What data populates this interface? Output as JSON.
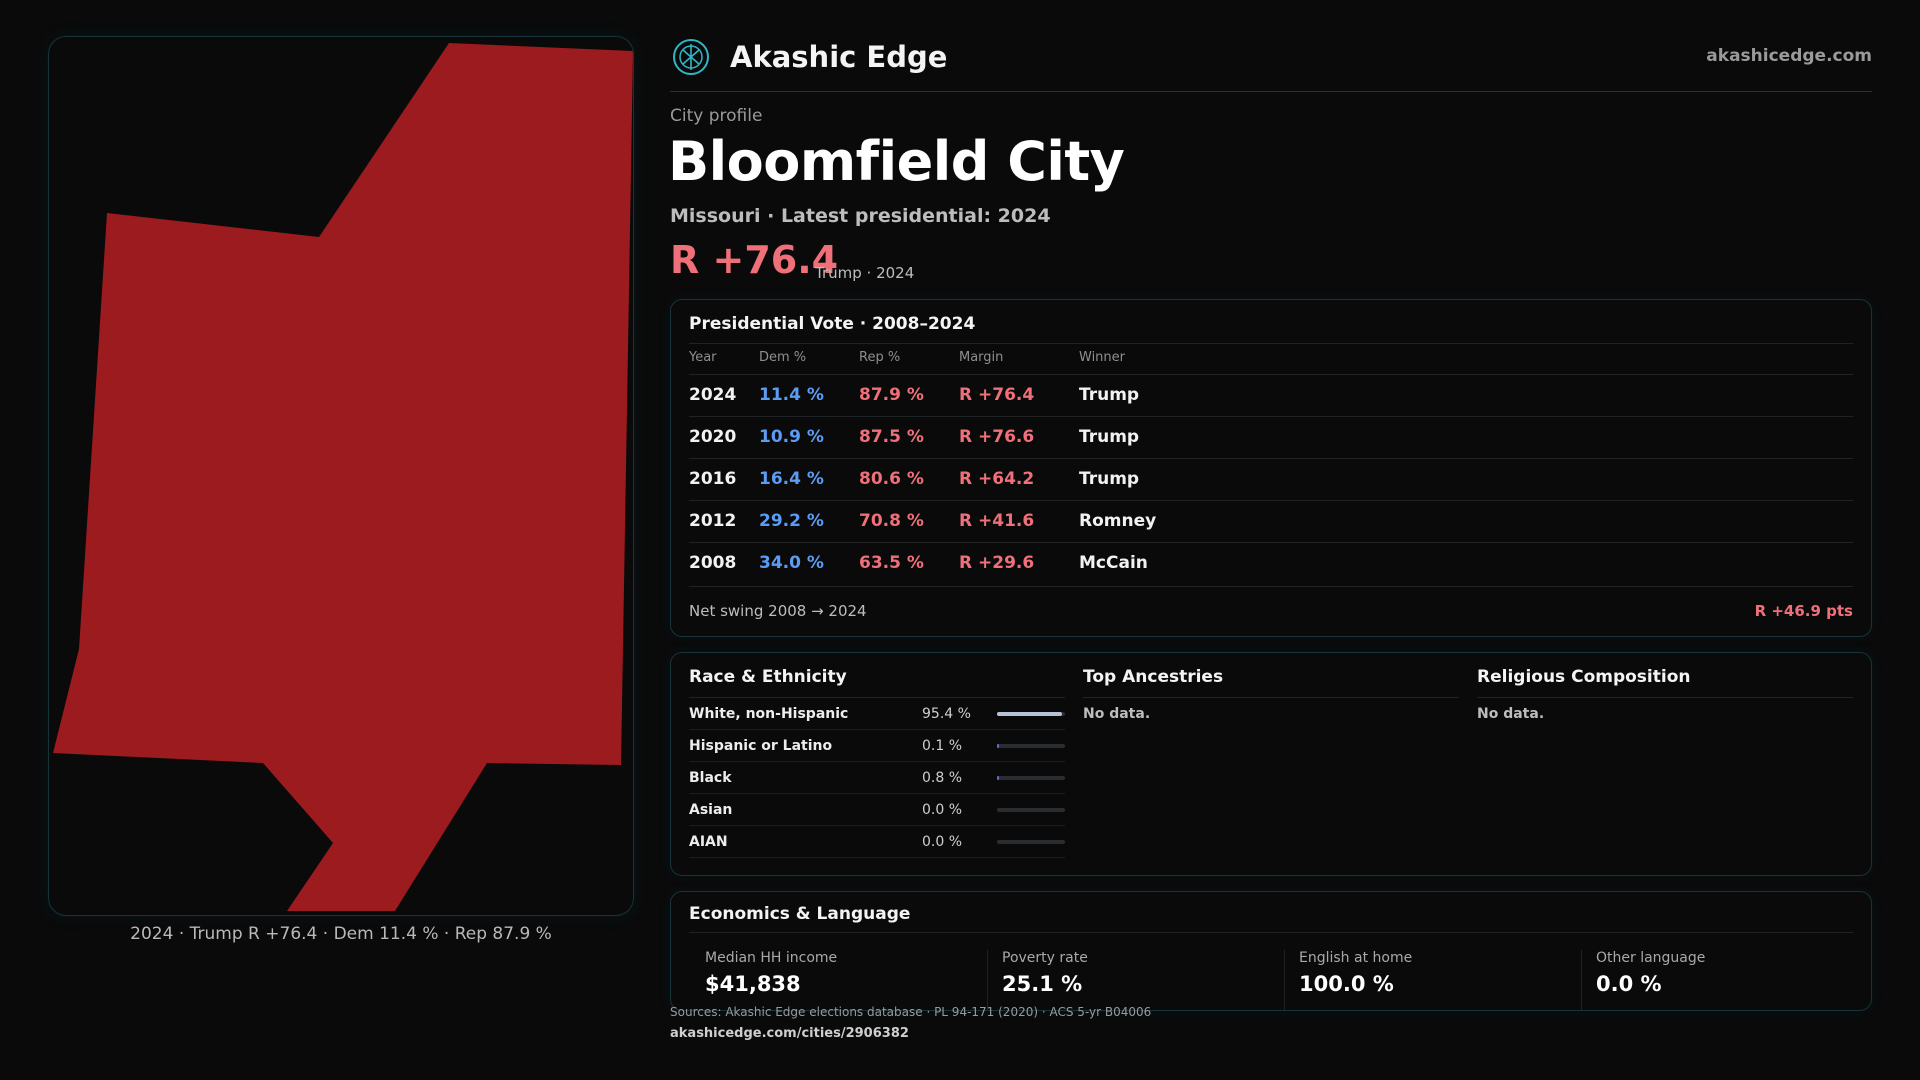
{
  "brand": {
    "name": "Akashic Edge",
    "site": "akashicedge.com"
  },
  "profile": {
    "eyebrow": "City profile",
    "title": "Bloomfield City",
    "subtitle": "Missouri · Latest presidential: 2024",
    "margin": "R +76.4",
    "margin_note": "Trump · 2024"
  },
  "map": {
    "caption": "2024 · Trump R +76.4 · Dem 11.4 % · Rep 87.9 %",
    "fill_color": "#9b1b1f"
  },
  "vote": {
    "title": "Presidential Vote · 2008–2024",
    "headers": {
      "year": "Year",
      "dem": "Dem %",
      "rep": "Rep %",
      "margin": "Margin",
      "winner": "Winner"
    },
    "rows": [
      {
        "year": "2024",
        "dem": "11.4 %",
        "rep": "87.9 %",
        "margin": "R +76.4",
        "winner": "Trump"
      },
      {
        "year": "2020",
        "dem": "10.9 %",
        "rep": "87.5 %",
        "margin": "R +76.6",
        "winner": "Trump"
      },
      {
        "year": "2016",
        "dem": "16.4 %",
        "rep": "80.6 %",
        "margin": "R +64.2",
        "winner": "Trump"
      },
      {
        "year": "2012",
        "dem": "29.2 %",
        "rep": "70.8 %",
        "margin": "R +41.6",
        "winner": "Romney"
      },
      {
        "year": "2008",
        "dem": "34.0 %",
        "rep": "63.5 %",
        "margin": "R +29.6",
        "winner": "McCain"
      }
    ],
    "swing_label": "Net swing 2008 → 2024",
    "swing_value": "R +46.9 pts"
  },
  "race": {
    "title": "Race & Ethnicity",
    "rows": [
      {
        "name": "White, non-Hispanic",
        "value": "95.4 %",
        "share": 0.954
      },
      {
        "name": "Hispanic or Latino",
        "value": "0.1 %",
        "share": 0.001
      },
      {
        "name": "Black",
        "value": "0.8 %",
        "share": 0.008
      },
      {
        "name": "Asian",
        "value": "0.0 %",
        "share": 0.0
      },
      {
        "name": "AIAN",
        "value": "0.0 %",
        "share": 0.0
      }
    ]
  },
  "ancestries": {
    "title": "Top Ancestries",
    "empty": "No data."
  },
  "religion": {
    "title": "Religious Composition",
    "empty": "No data."
  },
  "economics": {
    "title": "Economics & Language",
    "stats": [
      {
        "label": "Median HH income",
        "value": "$41,838"
      },
      {
        "label": "Poverty rate",
        "value": "25.1 %"
      },
      {
        "label": "English at home",
        "value": "100.0 %"
      },
      {
        "label": "Other language",
        "value": "0.0 %"
      }
    ]
  },
  "footer": {
    "sources": "Sources: Akashic Edge elections database · PL 94-171 (2020) · ACS 5-yr B04006",
    "url": "akashicedge.com/cities/2906382"
  },
  "colors": {
    "dem": "#5b9cf5",
    "rep": "#f0707a",
    "accent": "#2fb6c4"
  },
  "icons": {
    "logo": "akashic-logo-icon"
  }
}
